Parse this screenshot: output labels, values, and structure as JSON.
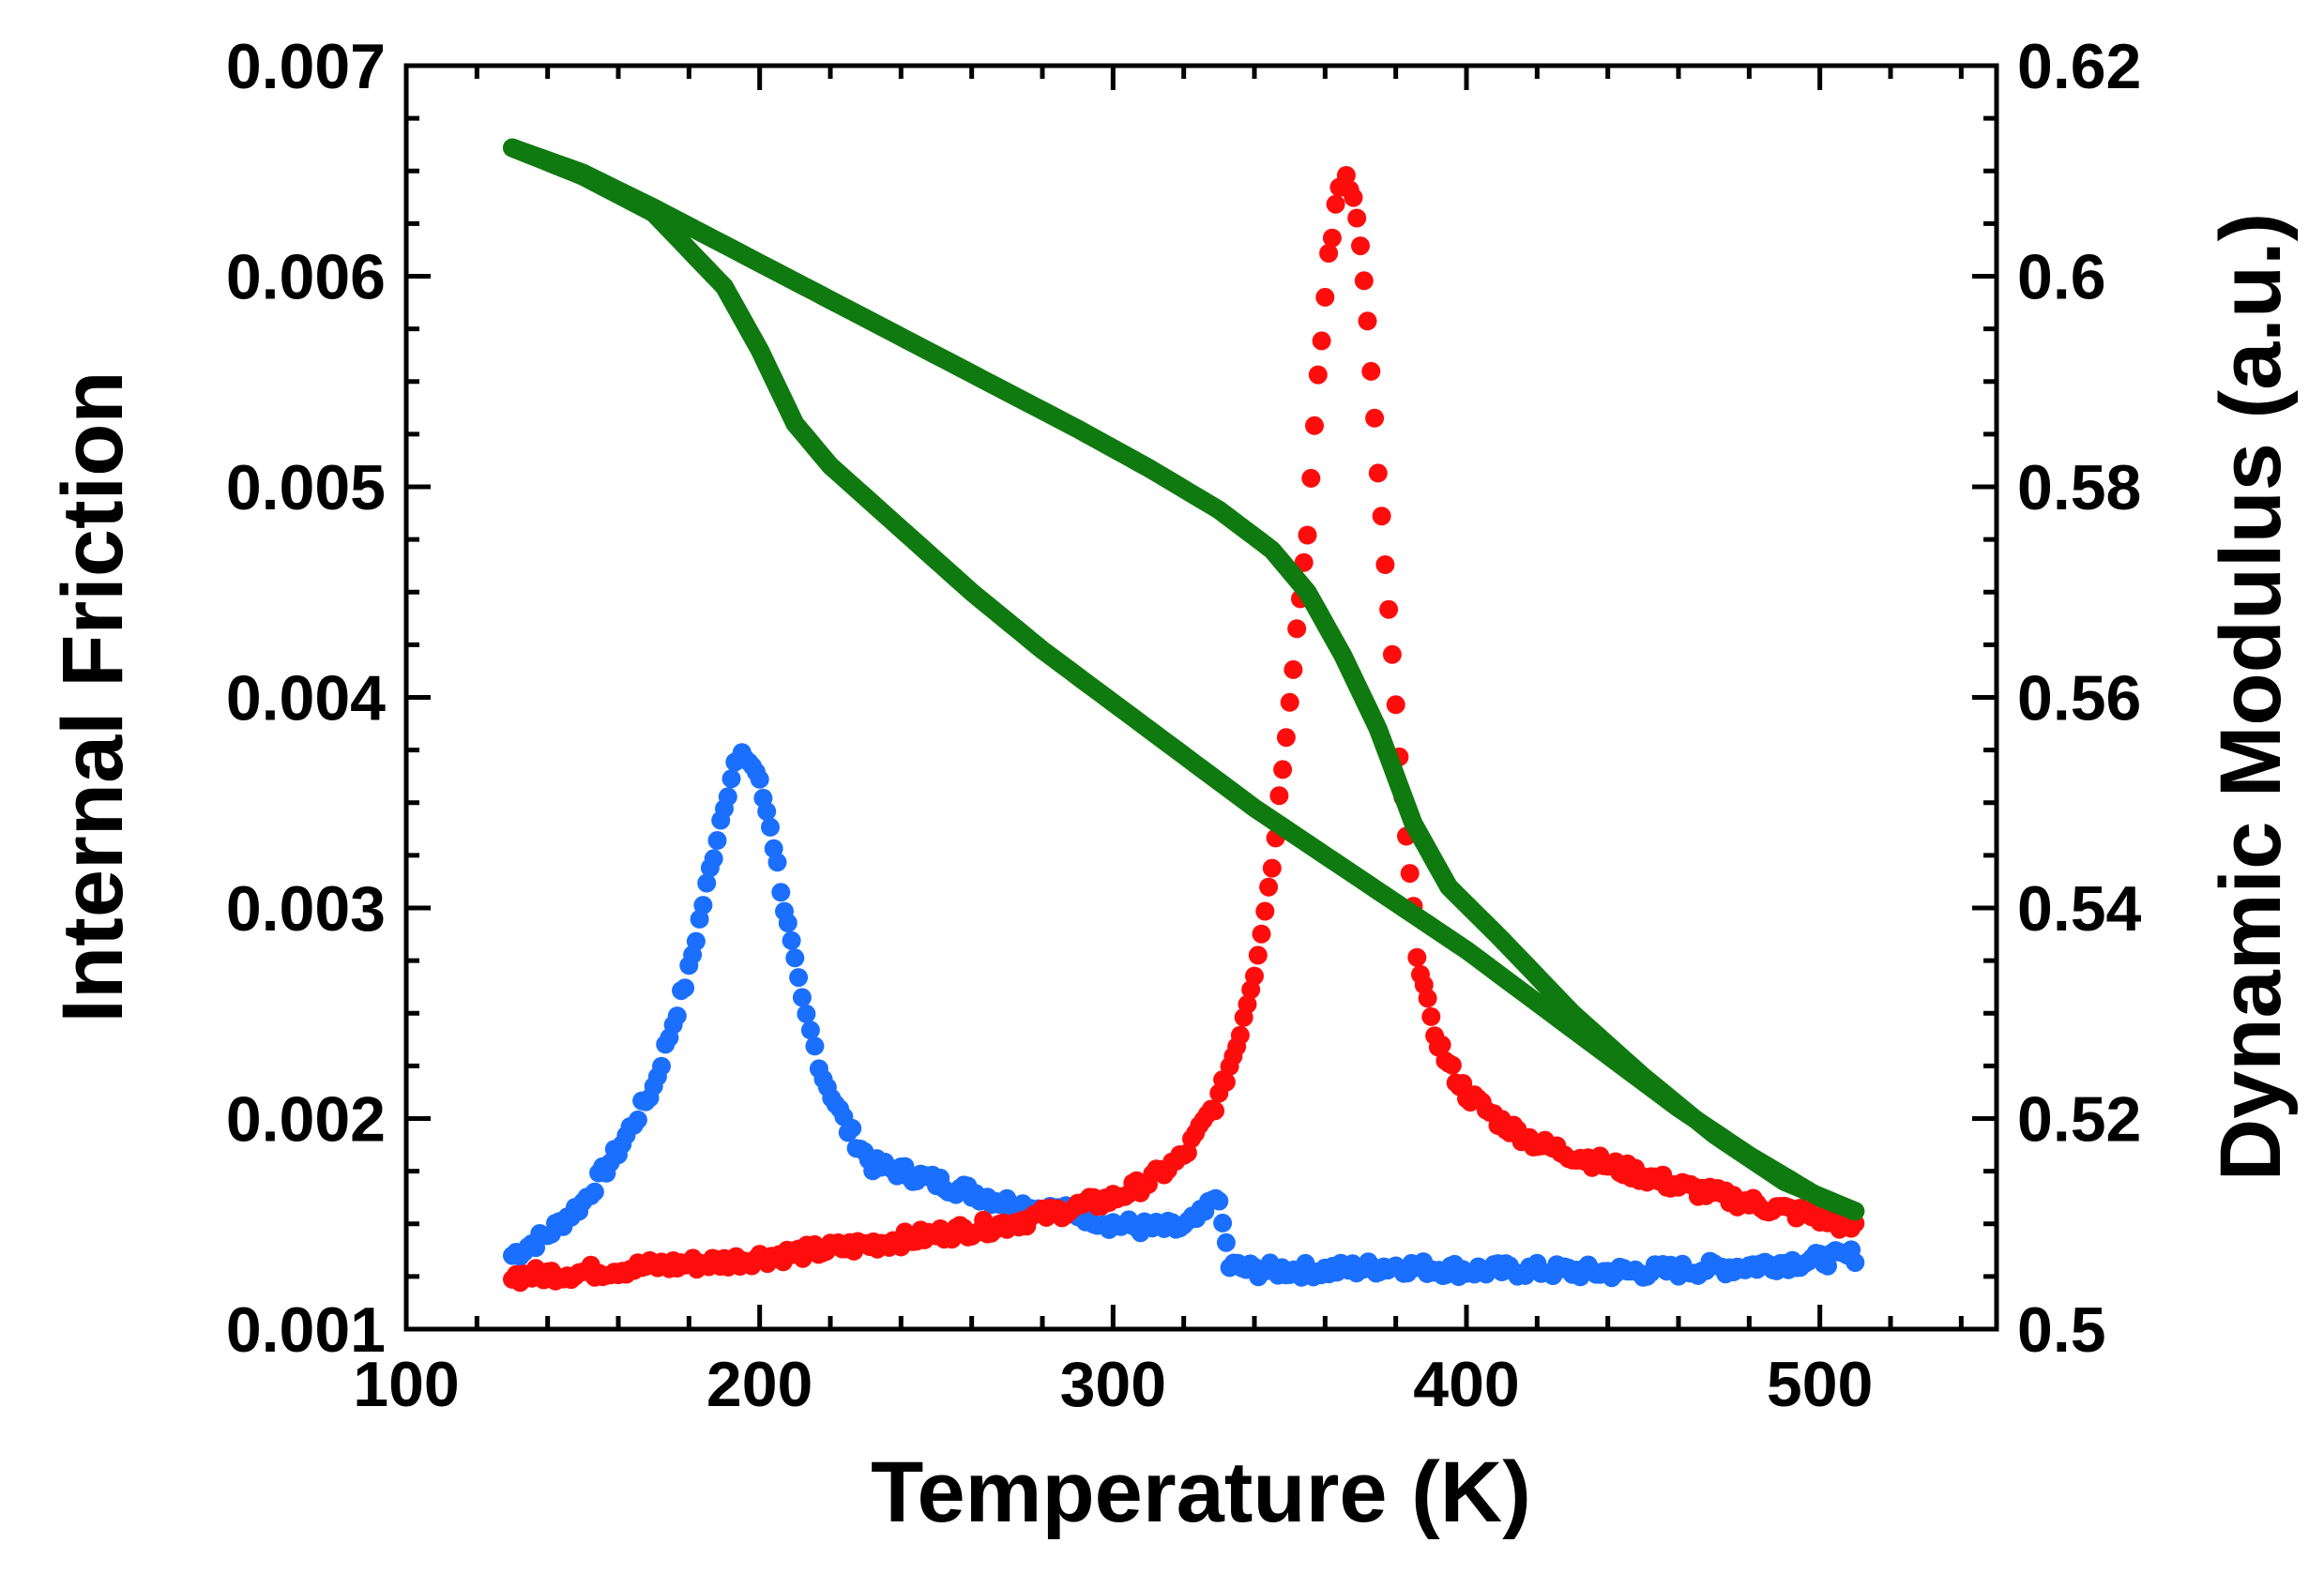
{
  "chart_data": {
    "type": "scatter",
    "title": "",
    "xlabel": "Temperature (K)",
    "ylabel_left": "Internal Friction",
    "ylabel_right": "Dynamic Modulus (a.u.)",
    "xlim": [
      100,
      550
    ],
    "ylim_left": [
      0.001,
      0.007
    ],
    "ylim_right": [
      0.5,
      0.62
    ],
    "x_ticks": [
      "100",
      "200",
      "300",
      "400",
      "500"
    ],
    "y_left_ticks": [
      "0.001",
      "0.002",
      "0.003",
      "0.004",
      "0.005",
      "0.006",
      "0.007"
    ],
    "y_right_ticks": [
      "0.5",
      "0.52",
      "0.54",
      "0.56",
      "0.58",
      "0.6",
      "0.62"
    ],
    "grid": false,
    "legend": "none",
    "colors": {
      "blue": "#1a6fff",
      "red": "#ff0d0d",
      "green": "#0f7a0f",
      "axis": "#000000"
    },
    "series": [
      {
        "name": "internal-friction-blue",
        "axis": "left",
        "color": "#1a6fff",
        "marker": "circle",
        "x": [
          130,
          140,
          150,
          160,
          170,
          180,
          185,
          190,
          193,
          196,
          199,
          203,
          207,
          212,
          218,
          225,
          232,
          240,
          250,
          260,
          270,
          280,
          290,
          300,
          310,
          320,
          326,
          329,
          331,
          333,
          340,
          360,
          380,
          400,
          420,
          440,
          460,
          480,
          500,
          510
        ],
        "y": [
          0.00135,
          0.00145,
          0.0016,
          0.00185,
          0.00215,
          0.0027,
          0.0031,
          0.0035,
          0.00368,
          0.00372,
          0.00365,
          0.0034,
          0.003,
          0.00255,
          0.0022,
          0.00195,
          0.00178,
          0.00175,
          0.0017,
          0.00165,
          0.0016,
          0.00157,
          0.00155,
          0.0015,
          0.00148,
          0.00148,
          0.00155,
          0.00165,
          0.0015,
          0.0013,
          0.00128,
          0.00128,
          0.0013,
          0.00128,
          0.00128,
          0.00127,
          0.00128,
          0.0013,
          0.00133,
          0.00135
        ]
      },
      {
        "name": "internal-friction-red",
        "axis": "left",
        "color": "#ff0d0d",
        "marker": "circle",
        "x": [
          130,
          150,
          170,
          190,
          210,
          230,
          250,
          270,
          290,
          300,
          310,
          320,
          330,
          335,
          340,
          345,
          350,
          355,
          358,
          361,
          364,
          366,
          368,
          371,
          374,
          378,
          382,
          386,
          390,
          395,
          400,
          410,
          420,
          440,
          460,
          480,
          500,
          510
        ],
        "y": [
          0.00125,
          0.00127,
          0.0013,
          0.00132,
          0.00136,
          0.0014,
          0.00145,
          0.0015,
          0.00158,
          0.00162,
          0.0017,
          0.00182,
          0.0021,
          0.00235,
          0.0027,
          0.0032,
          0.004,
          0.0048,
          0.0055,
          0.0061,
          0.00642,
          0.00648,
          0.0064,
          0.006,
          0.0053,
          0.0044,
          0.0035,
          0.0028,
          0.00245,
          0.00225,
          0.00212,
          0.00198,
          0.00188,
          0.00178,
          0.00168,
          0.0016,
          0.00153,
          0.00148
        ]
      },
      {
        "name": "dynamic-modulus-cooling",
        "axis": "right",
        "color": "#0f7a0f",
        "marker": "line",
        "x": [
          130,
          150,
          170,
          190,
          200,
          210,
          220,
          240,
          260,
          280,
          300,
          320,
          340,
          360,
          380,
          400,
          420,
          440,
          460,
          480,
          500,
          510
        ],
        "y": [
          0.6122,
          0.6095,
          0.606,
          0.599,
          0.593,
          0.586,
          0.582,
          0.576,
          0.57,
          0.5645,
          0.5595,
          0.5545,
          0.5495,
          0.545,
          0.5405,
          0.536,
          0.531,
          0.526,
          0.521,
          0.5165,
          0.5125,
          0.5112
        ]
      },
      {
        "name": "dynamic-modulus-heating",
        "axis": "right",
        "color": "#0f7a0f",
        "marker": "line",
        "x": [
          130,
          150,
          170,
          190,
          210,
          230,
          250,
          270,
          290,
          310,
          330,
          345,
          355,
          365,
          375,
          385,
          395,
          410,
          430,
          450,
          470,
          490,
          510
        ],
        "y": [
          0.6122,
          0.6098,
          0.6065,
          0.603,
          0.5995,
          0.596,
          0.5925,
          0.589,
          0.5855,
          0.5818,
          0.5778,
          0.574,
          0.57,
          0.564,
          0.557,
          0.548,
          0.542,
          0.537,
          0.53,
          0.524,
          0.5185,
          0.514,
          0.5112
        ]
      }
    ]
  }
}
